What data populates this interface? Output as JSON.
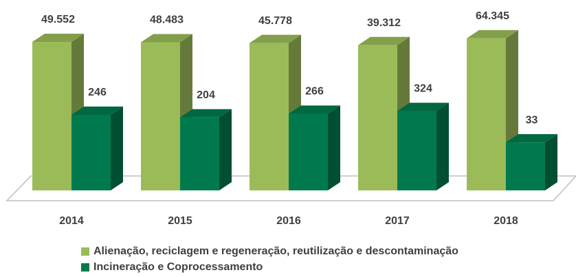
{
  "chart_data": {
    "type": "bar3d",
    "categories": [
      "2014",
      "2015",
      "2016",
      "2017",
      "2018"
    ],
    "series": [
      {
        "name": "Alienação, reciclagem e regeneração, reutilização e descontaminação",
        "color": "#9bbb59",
        "values": [
          49552,
          48483,
          45778,
          39312,
          64345
        ],
        "value_labels": [
          "49.552",
          "48.483",
          "45.778",
          "39.312",
          "64.345"
        ]
      },
      {
        "name": "Incineração e Coprocessamento",
        "color": "#007a4d",
        "values": [
          246,
          204,
          266,
          324,
          33
        ]
      }
    ],
    "log_scale": true,
    "ylim": [
      1,
      100000
    ],
    "legend": "bottom"
  }
}
